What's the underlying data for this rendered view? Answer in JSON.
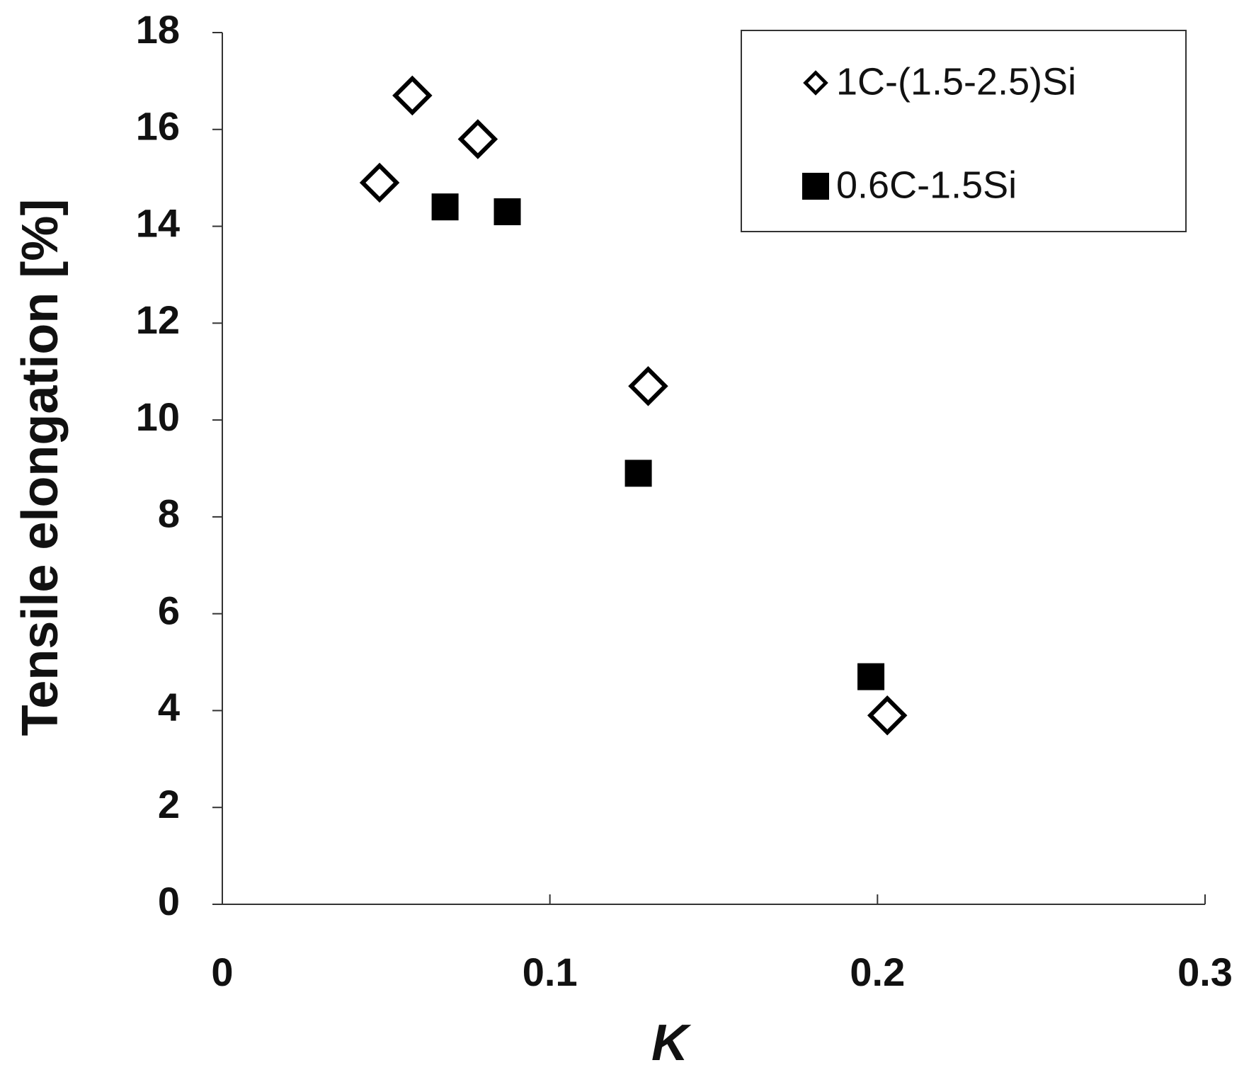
{
  "chart_data": {
    "type": "scatter",
    "x_label": "K",
    "y_label": "Tensile elongation [%]",
    "xlim": [
      0,
      0.3
    ],
    "xticks": [
      0,
      0.1,
      0.2,
      0.3
    ],
    "ylim": [
      0,
      18
    ],
    "yticks": [
      0,
      2,
      4,
      6,
      8,
      10,
      12,
      14,
      16,
      18
    ],
    "legend": "upper right",
    "grid": false,
    "series": [
      {
        "name": "1C-(1.5-2.5)Si",
        "color": "#000000",
        "marker": "diamond-open",
        "x": [
          0.048,
          0.058,
          0.078,
          0.13,
          0.203
        ],
        "values": [
          14.9,
          16.7,
          15.8,
          10.7,
          3.9
        ]
      },
      {
        "name": "0.6C-1.5Si",
        "color": "#000000",
        "marker": "square-filled",
        "x": [
          0.068,
          0.087,
          0.127,
          0.198
        ],
        "values": [
          14.4,
          14.3,
          8.9,
          4.7
        ]
      }
    ]
  }
}
